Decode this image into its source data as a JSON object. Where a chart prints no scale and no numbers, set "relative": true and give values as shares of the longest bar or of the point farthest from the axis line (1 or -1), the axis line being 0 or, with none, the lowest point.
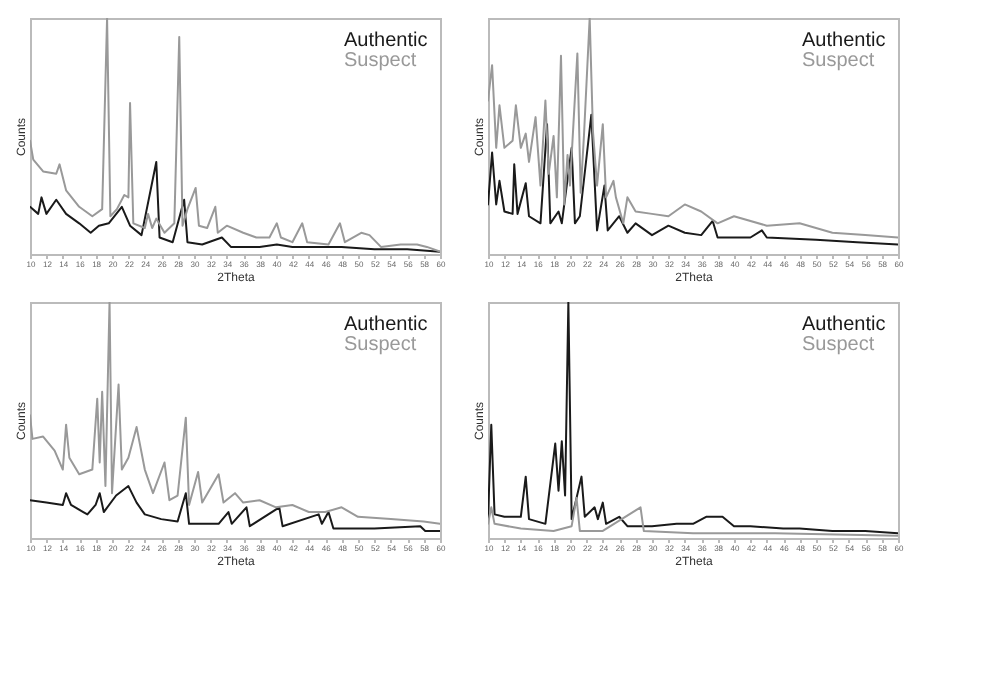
{
  "chart_data": [
    {
      "type": "line",
      "xlabel": "2Theta",
      "ylabel": "Counts",
      "relative": true,
      "legend": "top right",
      "xlim": [
        10,
        60
      ],
      "xticks": [
        10,
        12,
        14,
        16,
        18,
        20,
        22,
        24,
        26,
        28,
        30,
        32,
        34,
        36,
        38,
        40,
        42,
        44,
        46,
        48,
        50,
        52,
        54,
        56,
        58,
        60
      ],
      "series": [
        {
          "name": "Authentic",
          "color": "#1a1a1a",
          "x": [
            10,
            11,
            11.4,
            12,
            13.2,
            14.4,
            16,
            17.4,
            18.4,
            19.6,
            21.2,
            22.2,
            23.6,
            25.4,
            25.8,
            27.4,
            28.8,
            29.2,
            31,
            33.4,
            34.5,
            38,
            40.1,
            42,
            48,
            52,
            56,
            60
          ],
          "values": [
            0.2,
            0.17,
            0.24,
            0.17,
            0.23,
            0.17,
            0.13,
            0.09,
            0.12,
            0.13,
            0.2,
            0.12,
            0.08,
            0.39,
            0.07,
            0.05,
            0.23,
            0.05,
            0.04,
            0.07,
            0.03,
            0.03,
            0.04,
            0.03,
            0.03,
            0.02,
            0.02,
            0.01
          ]
        },
        {
          "name": "Suspect",
          "color": "#999999",
          "x": [
            10,
            10.4,
            11.6,
            13.2,
            13.6,
            14.4,
            16,
            17.6,
            18.8,
            19.4,
            19.8,
            20.6,
            21.5,
            22,
            22.2,
            22.6,
            24,
            24.4,
            24.9,
            25.4,
            26.4,
            27.6,
            28.2,
            28.6,
            29.2,
            30.2,
            30.6,
            31.6,
            32.6,
            32.9,
            34,
            36,
            37.6,
            39.2,
            40.1,
            40.6,
            42,
            43.2,
            43.8,
            46.4,
            47.8,
            48.4,
            50.4,
            51.4,
            52.8,
            55.2,
            57.2,
            58.4,
            60
          ],
          "values": [
            0.48,
            0.4,
            0.35,
            0.34,
            0.38,
            0.27,
            0.2,
            0.16,
            0.19,
            1,
            0.16,
            0.19,
            0.25,
            0.24,
            0.64,
            0.13,
            0.11,
            0.17,
            0.11,
            0.15,
            0.09,
            0.13,
            0.92,
            0.12,
            0.19,
            0.28,
            0.12,
            0.11,
            0.2,
            0.09,
            0.12,
            0.09,
            0.07,
            0.07,
            0.13,
            0.07,
            0.05,
            0.13,
            0.05,
            0.04,
            0.13,
            0.05,
            0.09,
            0.08,
            0.03,
            0.04,
            0.04,
            0.03,
            0.01
          ]
        }
      ]
    },
    {
      "type": "line",
      "xlabel": "2Theta",
      "ylabel": "Counts",
      "relative": true,
      "legend": "top right",
      "xlim": [
        10,
        60
      ],
      "xticks": [
        10,
        12,
        14,
        16,
        18,
        20,
        22,
        24,
        26,
        28,
        30,
        32,
        34,
        36,
        38,
        40,
        42,
        44,
        46,
        48,
        50,
        52,
        54,
        56,
        58,
        60
      ],
      "series": [
        {
          "name": "Authentic",
          "color": "#1a1a1a",
          "x": [
            10,
            10.5,
            11,
            11.4,
            12,
            13,
            13.2,
            13.6,
            14.6,
            15,
            16.4,
            17.2,
            17.6,
            18.6,
            19,
            20.2,
            20.6,
            21.2,
            22.6,
            23.3,
            24.2,
            24.6,
            26,
            27,
            28,
            30,
            32,
            34,
            36,
            37.4,
            38,
            42,
            43.4,
            44,
            50,
            55,
            60
          ],
          "values": [
            0.21,
            0.43,
            0.21,
            0.31,
            0.18,
            0.17,
            0.38,
            0.17,
            0.3,
            0.16,
            0.13,
            0.55,
            0.13,
            0.18,
            0.13,
            0.45,
            0.13,
            0.16,
            0.59,
            0.1,
            0.29,
            0.1,
            0.16,
            0.09,
            0.13,
            0.08,
            0.12,
            0.09,
            0.08,
            0.14,
            0.07,
            0.07,
            0.1,
            0.07,
            0.06,
            0.05,
            0.04
          ]
        },
        {
          "name": "Suspect",
          "color": "#999999",
          "x": [
            10,
            10.5,
            11,
            11.4,
            12,
            13,
            13.4,
            14,
            14.6,
            15,
            15.8,
            16.4,
            17,
            17.4,
            18,
            18.4,
            18.9,
            19.3,
            19.7,
            20,
            20.9,
            21.3,
            21.7,
            22.4,
            22.8,
            23.3,
            24,
            24.4,
            25.3,
            25.6,
            26.5,
            27,
            28,
            30,
            32,
            34,
            36,
            38,
            40,
            44,
            48,
            52,
            56,
            60
          ],
          "values": [
            0.65,
            0.8,
            0.45,
            0.63,
            0.45,
            0.48,
            0.63,
            0.45,
            0.51,
            0.39,
            0.58,
            0.29,
            0.65,
            0.34,
            0.5,
            0.24,
            0.84,
            0.21,
            0.42,
            0.29,
            0.85,
            0.26,
            0.5,
            1,
            0.52,
            0.29,
            0.55,
            0.24,
            0.31,
            0.24,
            0.13,
            0.24,
            0.18,
            0.17,
            0.16,
            0.21,
            0.18,
            0.13,
            0.16,
            0.12,
            0.13,
            0.09,
            0.08,
            0.07
          ]
        }
      ]
    },
    {
      "type": "line",
      "xlabel": "2Theta",
      "ylabel": "Counts",
      "relative": true,
      "legend": "top right",
      "xlim": [
        10,
        60
      ],
      "xticks": [
        10,
        12,
        14,
        16,
        18,
        20,
        22,
        24,
        26,
        28,
        30,
        32,
        34,
        36,
        38,
        40,
        42,
        44,
        46,
        48,
        50,
        52,
        54,
        56,
        58,
        60
      ],
      "series": [
        {
          "name": "Authentic",
          "color": "#1a1a1a",
          "x": [
            10,
            12,
            14,
            14.4,
            15,
            16.5,
            17,
            18,
            18.5,
            19,
            20.5,
            22,
            23,
            24,
            26,
            28,
            29,
            29.4,
            33,
            34.2,
            34.6,
            36.4,
            36.8,
            40.4,
            40.8,
            45.2,
            45.6,
            46.4,
            47,
            52,
            57.6,
            58.2,
            60
          ],
          "values": [
            0.16,
            0.15,
            0.14,
            0.19,
            0.14,
            0.11,
            0.1,
            0.14,
            0.19,
            0.11,
            0.18,
            0.22,
            0.15,
            0.1,
            0.08,
            0.07,
            0.19,
            0.06,
            0.06,
            0.11,
            0.06,
            0.13,
            0.05,
            0.13,
            0.05,
            0.1,
            0.06,
            0.11,
            0.04,
            0.04,
            0.05,
            0.03,
            0.03
          ]
        },
        {
          "name": "Suspect",
          "color": "#999999",
          "x": [
            10,
            10.3,
            11.6,
            13,
            14,
            14.4,
            14.8,
            16,
            17.6,
            18.2,
            18.5,
            18.8,
            19.2,
            19.7,
            20,
            20.8,
            21.2,
            22,
            23,
            24,
            25,
            26.4,
            27,
            28,
            29,
            29.4,
            30.5,
            31,
            33,
            33.6,
            35,
            36,
            38,
            40,
            42,
            44,
            46,
            48,
            50,
            54,
            58,
            60
          ],
          "values": [
            0.52,
            0.42,
            0.43,
            0.37,
            0.29,
            0.48,
            0.34,
            0.27,
            0.29,
            0.59,
            0.32,
            0.62,
            0.22,
            1,
            0.19,
            0.65,
            0.29,
            0.34,
            0.47,
            0.29,
            0.19,
            0.32,
            0.16,
            0.18,
            0.51,
            0.14,
            0.28,
            0.15,
            0.27,
            0.15,
            0.19,
            0.15,
            0.16,
            0.13,
            0.14,
            0.11,
            0.11,
            0.13,
            0.09,
            0.08,
            0.07,
            0.06
          ]
        }
      ]
    },
    {
      "type": "line",
      "xlabel": "2Theta",
      "ylabel": "Counts",
      "relative": true,
      "legend": "top right",
      "xlim": [
        10,
        60
      ],
      "xticks": [
        10,
        12,
        14,
        16,
        18,
        20,
        22,
        24,
        26,
        28,
        30,
        32,
        34,
        36,
        38,
        40,
        42,
        44,
        46,
        48,
        50,
        52,
        54,
        56,
        58,
        60
      ],
      "series": [
        {
          "name": "Authentic",
          "color": "#1a1a1a",
          "x": [
            10,
            10.4,
            10.8,
            12,
            14,
            14.6,
            15,
            17,
            18.2,
            18.6,
            19,
            19.4,
            19.8,
            20.2,
            21.4,
            21.8,
            23,
            23.4,
            24,
            24.4,
            26,
            27,
            30,
            33,
            35,
            36.6,
            37.6,
            38.6,
            40,
            42,
            46,
            48,
            52,
            56,
            60
          ],
          "values": [
            0.08,
            0.48,
            0.1,
            0.09,
            0.09,
            0.26,
            0.08,
            0.06,
            0.4,
            0.2,
            0.41,
            0.18,
            1,
            0.08,
            0.26,
            0.09,
            0.13,
            0.08,
            0.15,
            0.06,
            0.09,
            0.05,
            0.05,
            0.06,
            0.06,
            0.09,
            0.09,
            0.09,
            0.05,
            0.05,
            0.04,
            0.04,
            0.03,
            0.03,
            0.02
          ]
        },
        {
          "name": "Suspect",
          "color": "#999999",
          "x": [
            10,
            10.4,
            10.8,
            14,
            18,
            20.2,
            20.8,
            21.2,
            24,
            28.6,
            29,
            35,
            45,
            60
          ],
          "values": [
            0.06,
            0.13,
            0.06,
            0.04,
            0.03,
            0.05,
            0.17,
            0.03,
            0.03,
            0.13,
            0.03,
            0.02,
            0.02,
            0.01
          ]
        }
      ]
    }
  ]
}
